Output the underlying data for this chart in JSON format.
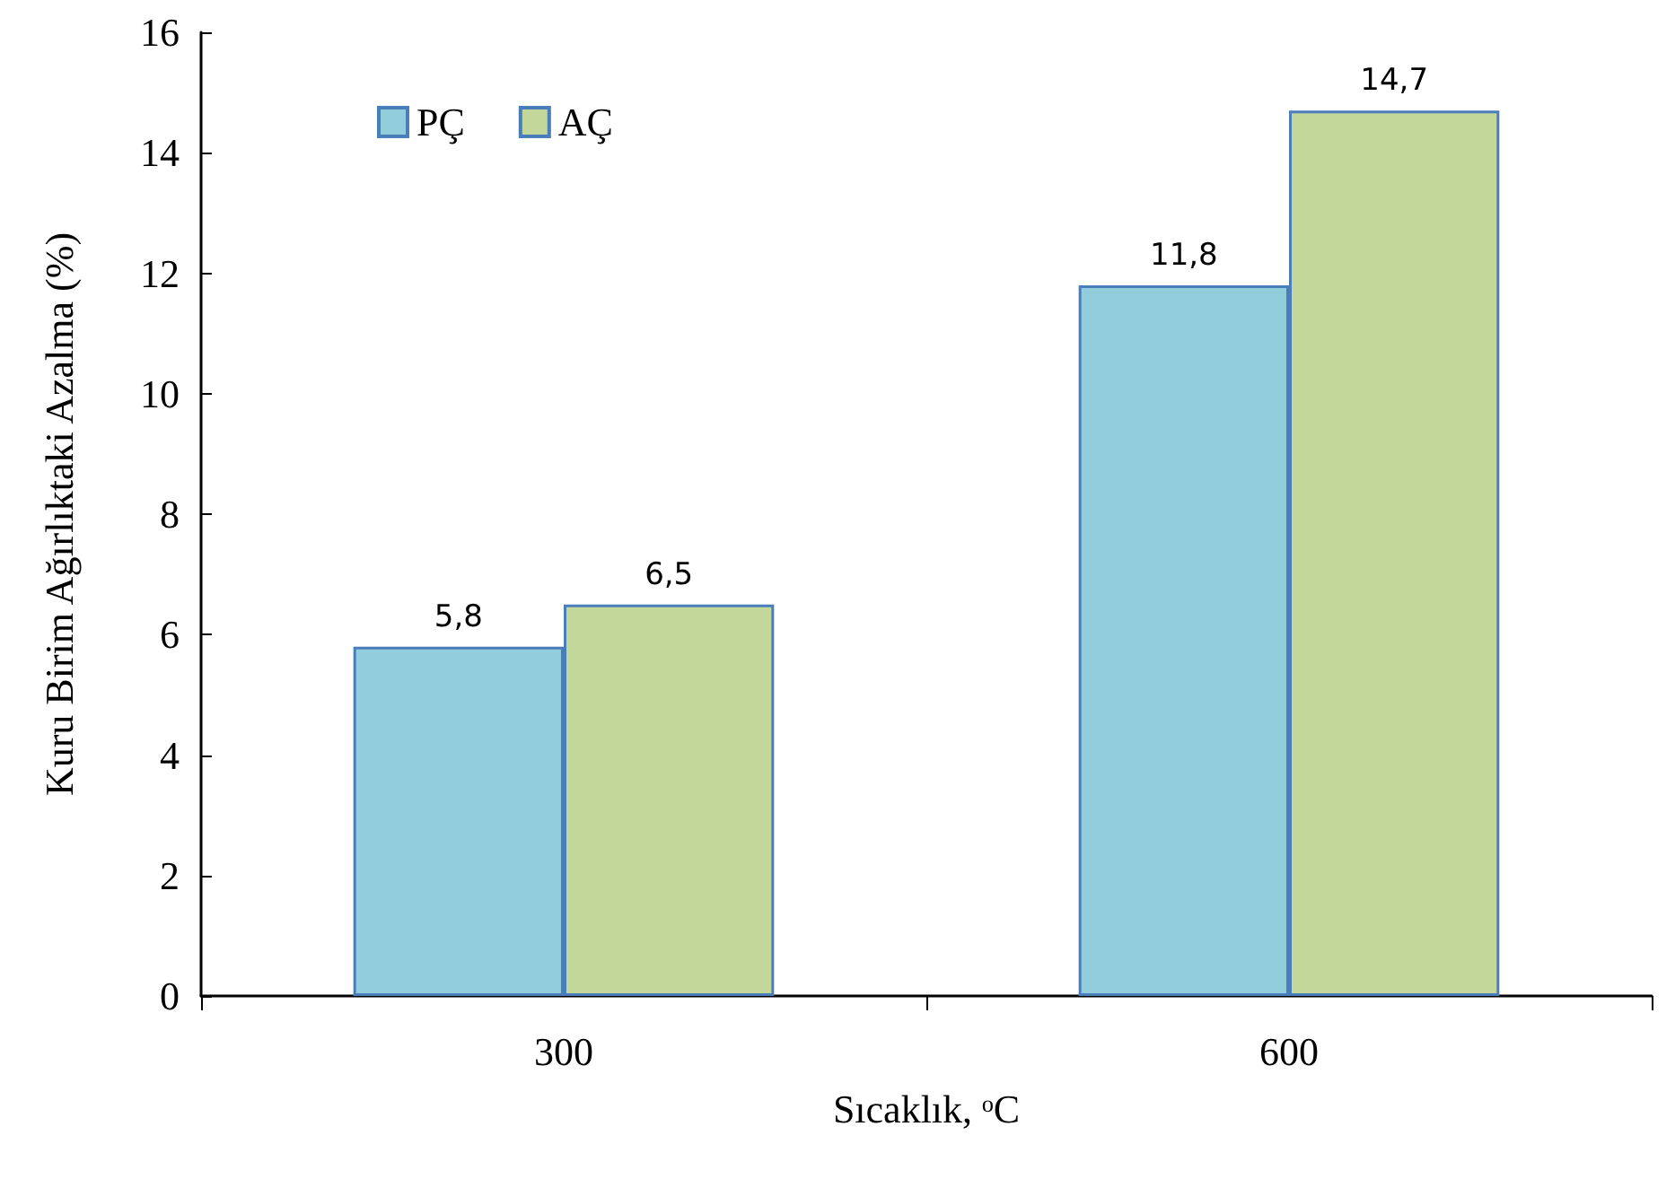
{
  "chart_data": {
    "type": "bar",
    "xlabel": "Sıcaklık, ᵒC",
    "ylabel": "Kuru Birim Ağırlıktaki Azalma (%)",
    "categories": [
      "300",
      "600"
    ],
    "series": [
      {
        "name": "PÇ",
        "color": "#92cddc",
        "values": [
          5.8,
          11.8
        ],
        "value_labels": [
          "5,8",
          "11,8"
        ]
      },
      {
        "name": "AÇ",
        "color": "#c4d79b",
        "values": [
          6.5,
          14.7
        ],
        "value_labels": [
          "6,5",
          "14,7"
        ]
      }
    ],
    "ylim": [
      0,
      16
    ],
    "yticks": [
      0,
      2,
      4,
      6,
      8,
      10,
      12,
      14,
      16
    ],
    "grid": false,
    "legend": "top left"
  }
}
